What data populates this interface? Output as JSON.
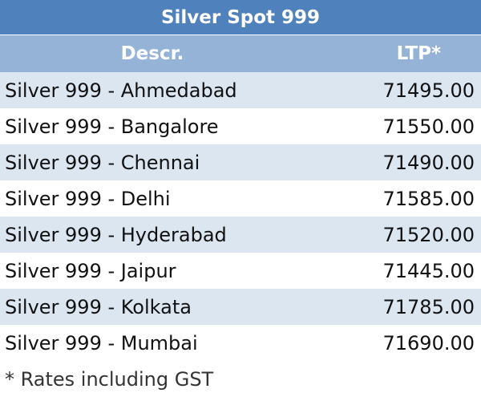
{
  "table": {
    "title": "Silver Spot 999",
    "columns": [
      "Descr.",
      "LTP*"
    ],
    "rows": [
      [
        "Silver 999 - Ahmedabad",
        "71495.00"
      ],
      [
        "Silver 999 - Bangalore",
        "71550.00"
      ],
      [
        "Silver 999 - Chennai",
        "71490.00"
      ],
      [
        "Silver 999 - Delhi",
        "71585.00"
      ],
      [
        "Silver 999 - Hyderabad",
        "71520.00"
      ],
      [
        "Silver 999 - Jaipur",
        "71445.00"
      ],
      [
        "Silver 999 - Kolkata",
        "71785.00"
      ],
      [
        "Silver 999 - Mumbai",
        "71690.00"
      ]
    ],
    "footnote": "* Rates including GST"
  }
}
